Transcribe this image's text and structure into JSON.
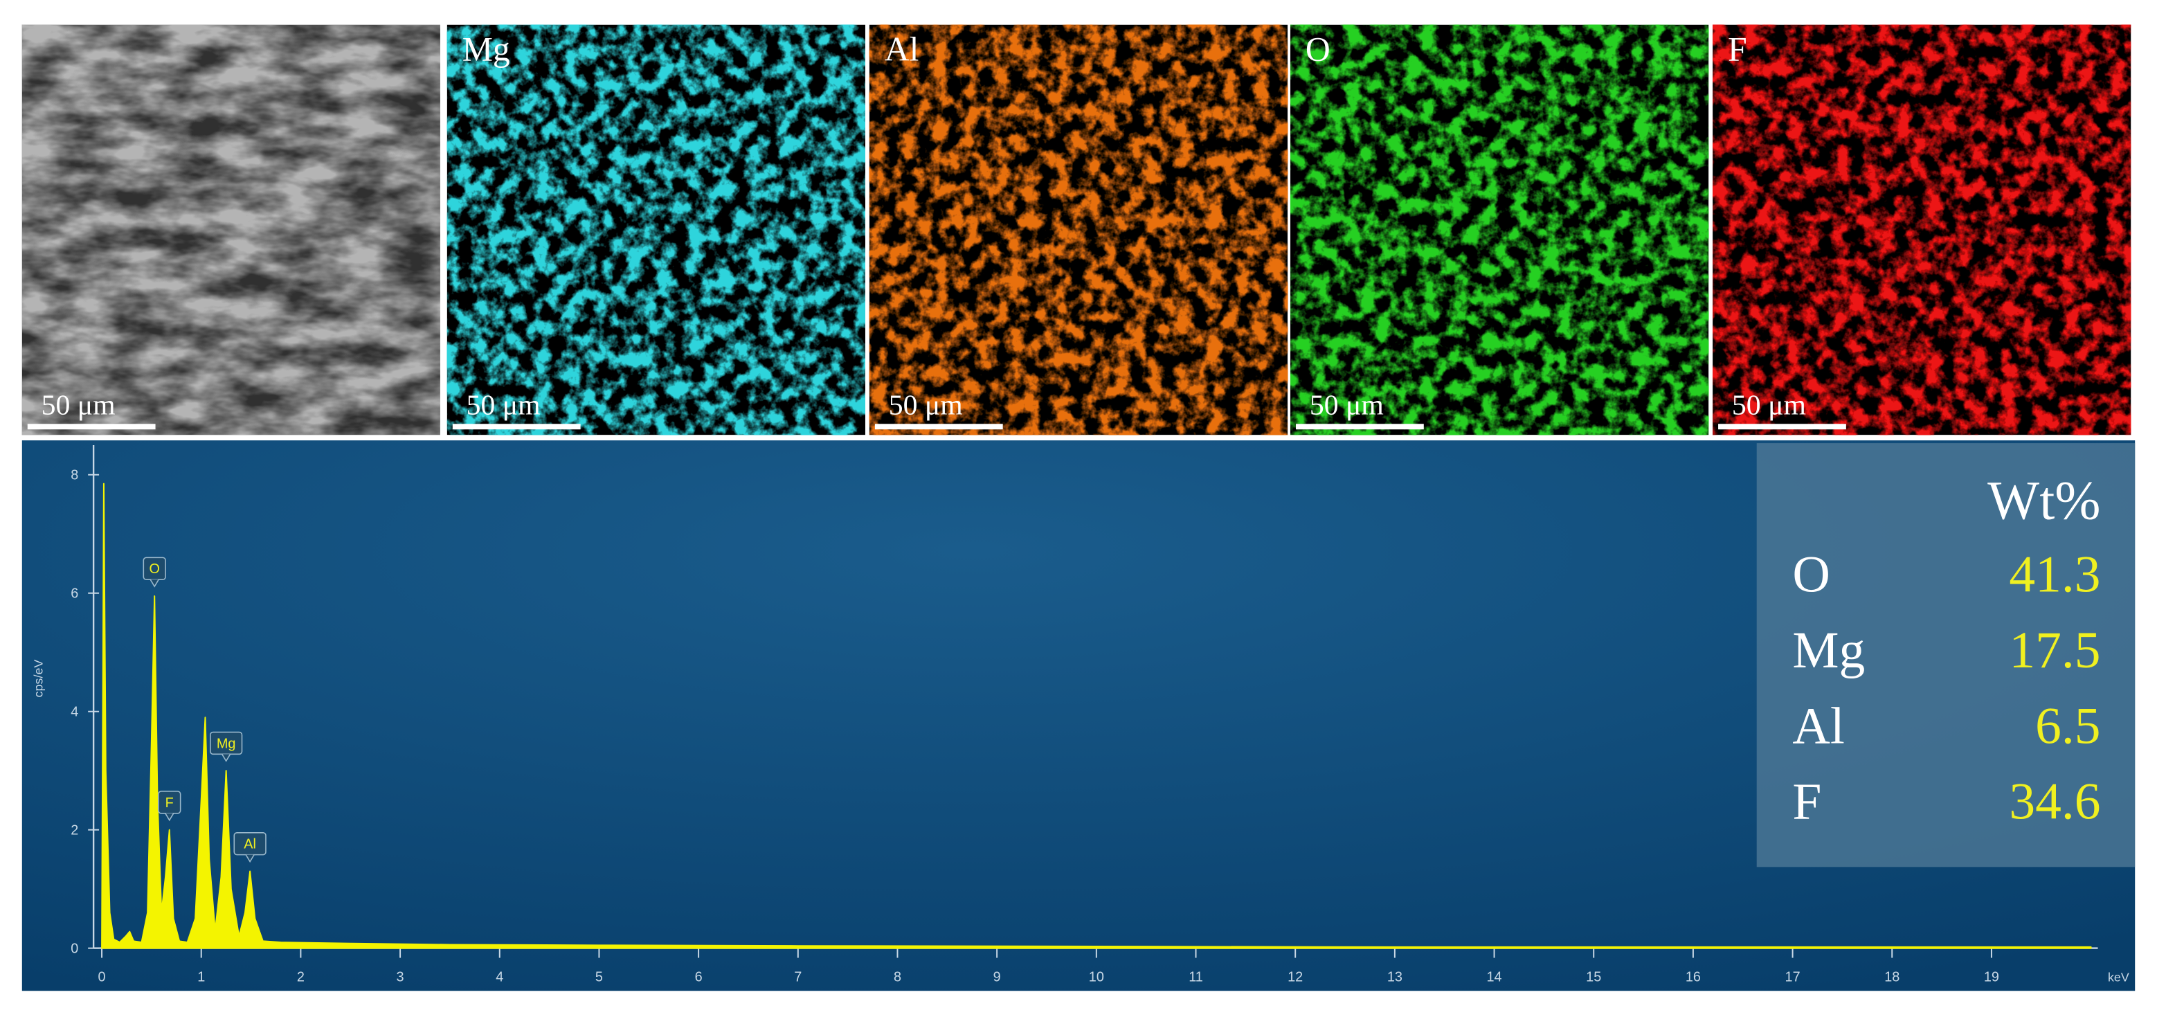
{
  "panels": [
    {
      "color": "#b4b4b4",
      "scale_bar": "50 μm"
    },
    {
      "label": "Mg",
      "color": "#2fd4dc",
      "scale_bar": "50 μm"
    },
    {
      "label": "Al",
      "color": "#e8700f",
      "scale_bar": "50 μm"
    },
    {
      "label": "O",
      "color": "#28d024",
      "scale_bar": "50 μm"
    },
    {
      "label": "F",
      "color": "#ec1212",
      "scale_bar": "50 μm"
    }
  ],
  "table": {
    "header": "Wt%",
    "rows": [
      [
        "O",
        41.3
      ],
      [
        "Mg",
        17.5
      ],
      [
        "Al",
        6.5
      ],
      [
        "F",
        34.6
      ]
    ]
  },
  "chart_data": {
    "type": "area",
    "y_label": "cps/eV",
    "x_label": "keV",
    "color": "#f4f400",
    "x": [
      0,
      0.02,
      0.04,
      0.08,
      0.12,
      0.18,
      0.24,
      0.28,
      0.32,
      0.4,
      0.46,
      0.5,
      0.53,
      0.56,
      0.6,
      0.64,
      0.68,
      0.72,
      0.78,
      0.86,
      0.94,
      1.0,
      1.04,
      1.08,
      1.14,
      1.2,
      1.25,
      1.3,
      1.38,
      1.44,
      1.49,
      1.54,
      1.62,
      1.8,
      2.5,
      3.5,
      5,
      7,
      10,
      13,
      16,
      20
    ],
    "values": [
      0,
      7.85,
      3.0,
      0.6,
      0.15,
      0.1,
      0.2,
      0.28,
      0.12,
      0.1,
      0.6,
      3.5,
      5.95,
      2.5,
      0.6,
      1.2,
      2.0,
      0.5,
      0.12,
      0.1,
      0.5,
      2.5,
      3.9,
      1.5,
      0.3,
      1.2,
      3.0,
      1.0,
      0.2,
      0.6,
      1.3,
      0.5,
      0.12,
      0.1,
      0.08,
      0.06,
      0.05,
      0.04,
      0.03,
      0.02,
      0.02,
      0.02
    ],
    "annotations": [
      {
        "label": "O",
        "x": 0.53
      },
      {
        "label": "F",
        "x": 0.68
      },
      {
        "label": "Mg",
        "x": 1.25
      },
      {
        "label": "Al",
        "x": 1.49
      }
    ],
    "xlim": [
      0,
      20
    ],
    "ylim": [
      0,
      8.5
    ],
    "xticks": [
      0,
      1,
      2,
      3,
      4,
      5,
      6,
      7,
      8,
      9,
      10,
      11,
      12,
      13,
      14,
      15,
      16,
      17,
      18,
      19
    ],
    "yticks": [
      0,
      2,
      4,
      6,
      8
    ]
  }
}
